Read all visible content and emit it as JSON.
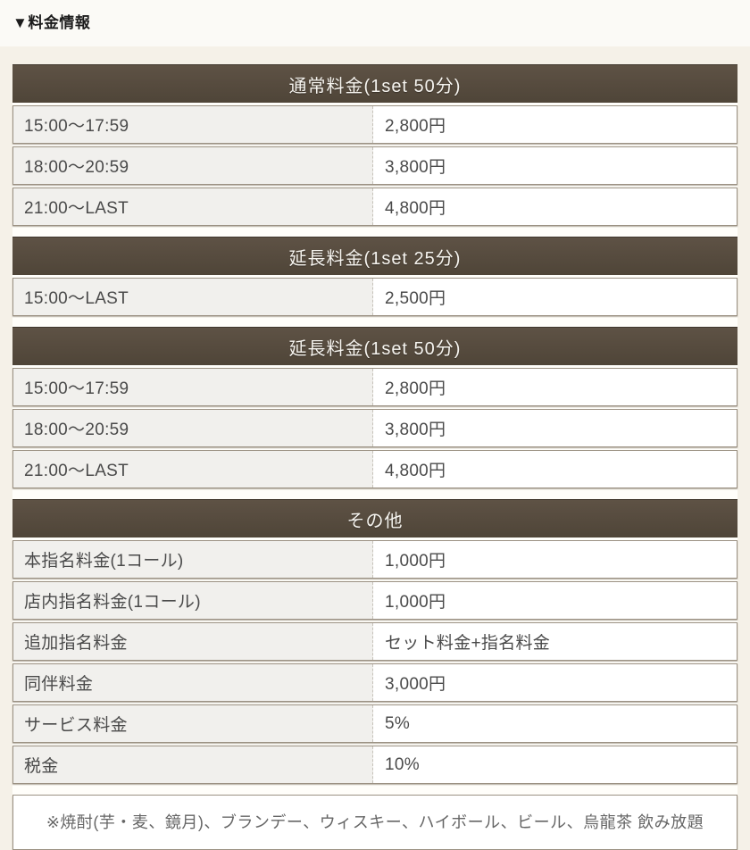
{
  "page_title": "▼料金情報",
  "sections": [
    {
      "header": "通常料金(1set 50分)",
      "rows": [
        {
          "label": "15:00〜17:59",
          "value": "2,800円"
        },
        {
          "label": "18:00〜20:59",
          "value": "3,800円"
        },
        {
          "label": "21:00〜LAST",
          "value": "4,800円"
        }
      ]
    },
    {
      "header": "延長料金(1set 25分)",
      "rows": [
        {
          "label": "15:00〜LAST",
          "value": "2,500円"
        }
      ]
    },
    {
      "header": "延長料金(1set 50分)",
      "rows": [
        {
          "label": "15:00〜17:59",
          "value": "2,800円"
        },
        {
          "label": "18:00〜20:59",
          "value": "3,800円"
        },
        {
          "label": "21:00〜LAST",
          "value": "4,800円"
        }
      ]
    },
    {
      "header": "その他",
      "rows": [
        {
          "label": "本指名料金(1コール)",
          "value": "1,000円"
        },
        {
          "label": "店内指名料金(1コール)",
          "value": "1,000円"
        },
        {
          "label": "追加指名料金",
          "value": "セット料金+指名料金"
        },
        {
          "label": "同伴料金",
          "value": "3,000円"
        },
        {
          "label": "サービス料金",
          "value": "5%"
        },
        {
          "label": "税金",
          "value": "10%"
        }
      ]
    }
  ],
  "footnote": "※焼酎(芋・麦、鏡月)、ブランデー、ウィスキー、ハイボール、ビール、烏龍茶 飲み放題",
  "colors": {
    "section_header_bg": "#564b3e",
    "section_header_text": "#f6f4ef",
    "row_label_bg": "#f1f0ed",
    "row_value_bg": "#ffffff",
    "row_border": "#9b9183",
    "page_bg": "#f5f1e8",
    "top_bar_bg": "#fbfaf6",
    "row_text": "#4a4a4a",
    "footnote_text": "#666666"
  }
}
